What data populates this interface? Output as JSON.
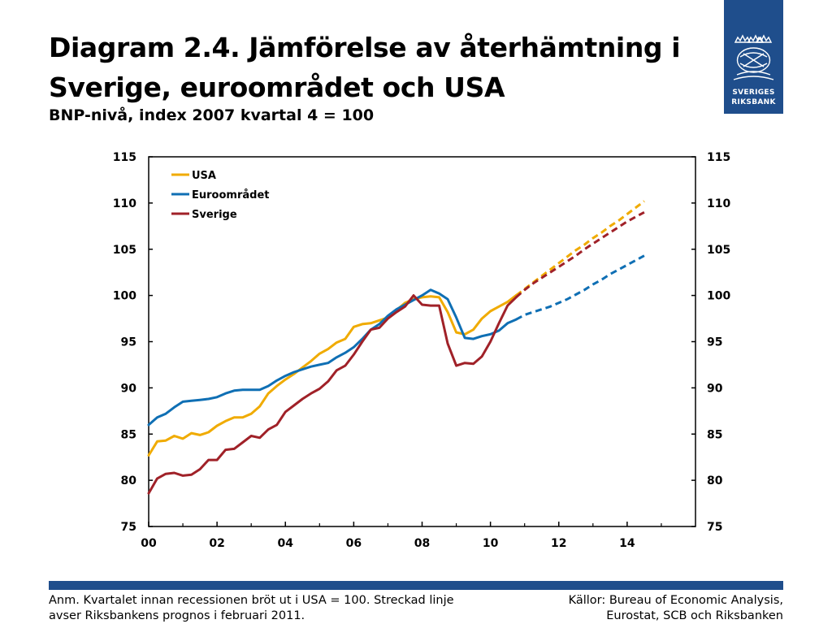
{
  "page": {
    "title_line1": "Diagram 2.4. Jämförelse av återhämtning i",
    "title_line2": "Sverige, euroområdet och USA",
    "subtitle": "BNP-nivå, index 2007 kvartal 4 = 100",
    "logo": {
      "line1": "SVERIGES",
      "line2": "RIKSBANK",
      "icon": "riksbank-crest-icon",
      "color": "#1f4e8c"
    },
    "note_line1": "Anm. Kvartalet innan recessionen bröt ut i USA = 100. Streckad linje",
    "note_line2": "avser Riksbankens prognos i februari 2011.",
    "sources_line1": "Källor: Bureau of Economic Analysis,",
    "sources_line2": "Eurostat, SCB och Riksbanken"
  },
  "chart_data": {
    "type": "line",
    "title": "",
    "xlabel": "",
    "ylabel": "",
    "x_ticks": [
      "00",
      "02",
      "04",
      "06",
      "08",
      "10",
      "12",
      "14"
    ],
    "x_tick_years": [
      2000,
      2002,
      2004,
      2006,
      2008,
      2010,
      2012,
      2014
    ],
    "xlim": [
      2000,
      2016
    ],
    "ylim": [
      75,
      115
    ],
    "y_ticks": [
      75,
      80,
      85,
      90,
      95,
      100,
      105,
      110,
      115
    ],
    "y_axis_both_sides": true,
    "grid": false,
    "legend_position": "top-left",
    "series": [
      {
        "name": "USA",
        "color": "#f0ab00",
        "actual": [
          [
            2000.0,
            82.7
          ],
          [
            2000.25,
            84.2
          ],
          [
            2000.5,
            84.3
          ],
          [
            2000.75,
            84.8
          ],
          [
            2001.0,
            84.5
          ],
          [
            2001.25,
            85.1
          ],
          [
            2001.5,
            84.9
          ],
          [
            2001.75,
            85.2
          ],
          [
            2002.0,
            85.9
          ],
          [
            2002.25,
            86.4
          ],
          [
            2002.5,
            86.8
          ],
          [
            2002.75,
            86.8
          ],
          [
            2003.0,
            87.2
          ],
          [
            2003.25,
            88.0
          ],
          [
            2003.5,
            89.4
          ],
          [
            2003.75,
            90.2
          ],
          [
            2004.0,
            90.9
          ],
          [
            2004.25,
            91.5
          ],
          [
            2004.5,
            92.2
          ],
          [
            2004.75,
            92.9
          ],
          [
            2005.0,
            93.7
          ],
          [
            2005.25,
            94.2
          ],
          [
            2005.5,
            94.9
          ],
          [
            2005.75,
            95.3
          ],
          [
            2006.0,
            96.6
          ],
          [
            2006.25,
            96.9
          ],
          [
            2006.5,
            97.0
          ],
          [
            2006.75,
            97.3
          ],
          [
            2007.0,
            97.6
          ],
          [
            2007.25,
            98.4
          ],
          [
            2007.5,
            99.2
          ],
          [
            2007.75,
            99.6
          ],
          [
            2008.0,
            99.8
          ],
          [
            2008.25,
            99.9
          ],
          [
            2008.5,
            99.8
          ],
          [
            2008.75,
            98.2
          ],
          [
            2009.0,
            96.0
          ],
          [
            2009.25,
            95.8
          ],
          [
            2009.5,
            96.3
          ],
          [
            2009.75,
            97.5
          ],
          [
            2010.0,
            98.3
          ],
          [
            2010.25,
            98.8
          ],
          [
            2010.5,
            99.3
          ],
          [
            2010.75,
            100.0
          ]
        ],
        "forecast": [
          [
            2010.75,
            100.0
          ],
          [
            2011.0,
            100.7
          ],
          [
            2011.25,
            101.4
          ],
          [
            2011.5,
            102.1
          ],
          [
            2011.75,
            102.8
          ],
          [
            2012.0,
            103.5
          ],
          [
            2012.25,
            104.2
          ],
          [
            2012.5,
            104.9
          ],
          [
            2012.75,
            105.5
          ],
          [
            2013.0,
            106.2
          ],
          [
            2013.25,
            106.8
          ],
          [
            2013.5,
            107.5
          ],
          [
            2013.75,
            108.1
          ],
          [
            2014.0,
            108.8
          ],
          [
            2014.25,
            109.5
          ],
          [
            2014.5,
            110.2
          ]
        ]
      },
      {
        "name": "Euroområdet",
        "color": "#0f6fb4",
        "actual": [
          [
            2000.0,
            86.0
          ],
          [
            2000.25,
            86.8
          ],
          [
            2000.5,
            87.2
          ],
          [
            2000.75,
            87.9
          ],
          [
            2001.0,
            88.5
          ],
          [
            2001.25,
            88.6
          ],
          [
            2001.5,
            88.7
          ],
          [
            2001.75,
            88.8
          ],
          [
            2002.0,
            89.0
          ],
          [
            2002.25,
            89.4
          ],
          [
            2002.5,
            89.7
          ],
          [
            2002.75,
            89.8
          ],
          [
            2003.0,
            89.8
          ],
          [
            2003.25,
            89.8
          ],
          [
            2003.5,
            90.2
          ],
          [
            2003.75,
            90.8
          ],
          [
            2004.0,
            91.3
          ],
          [
            2004.25,
            91.7
          ],
          [
            2004.5,
            92.0
          ],
          [
            2004.75,
            92.3
          ],
          [
            2005.0,
            92.5
          ],
          [
            2005.25,
            92.7
          ],
          [
            2005.5,
            93.3
          ],
          [
            2005.75,
            93.8
          ],
          [
            2006.0,
            94.4
          ],
          [
            2006.25,
            95.3
          ],
          [
            2006.5,
            96.3
          ],
          [
            2006.75,
            96.9
          ],
          [
            2007.0,
            97.8
          ],
          [
            2007.25,
            98.5
          ],
          [
            2007.5,
            99.0
          ],
          [
            2007.75,
            99.5
          ],
          [
            2008.0,
            100.0
          ],
          [
            2008.25,
            100.6
          ],
          [
            2008.5,
            100.2
          ],
          [
            2008.75,
            99.6
          ],
          [
            2009.0,
            97.6
          ],
          [
            2009.25,
            95.4
          ],
          [
            2009.5,
            95.3
          ],
          [
            2009.75,
            95.6
          ],
          [
            2010.0,
            95.8
          ],
          [
            2010.25,
            96.2
          ],
          [
            2010.5,
            97.0
          ],
          [
            2010.75,
            97.4
          ]
        ],
        "forecast": [
          [
            2010.75,
            97.4
          ],
          [
            2011.0,
            97.9
          ],
          [
            2011.25,
            98.2
          ],
          [
            2011.5,
            98.5
          ],
          [
            2011.75,
            98.8
          ],
          [
            2012.0,
            99.2
          ],
          [
            2012.25,
            99.6
          ],
          [
            2012.5,
            100.1
          ],
          [
            2012.75,
            100.6
          ],
          [
            2013.0,
            101.2
          ],
          [
            2013.25,
            101.7
          ],
          [
            2013.5,
            102.3
          ],
          [
            2013.75,
            102.8
          ],
          [
            2014.0,
            103.3
          ],
          [
            2014.25,
            103.8
          ],
          [
            2014.5,
            104.3
          ]
        ]
      },
      {
        "name": "Sverige",
        "color": "#a02128",
        "actual": [
          [
            2000.0,
            78.6
          ],
          [
            2000.25,
            80.2
          ],
          [
            2000.5,
            80.7
          ],
          [
            2000.75,
            80.8
          ],
          [
            2001.0,
            80.5
          ],
          [
            2001.25,
            80.6
          ],
          [
            2001.5,
            81.2
          ],
          [
            2001.75,
            82.2
          ],
          [
            2002.0,
            82.2
          ],
          [
            2002.25,
            83.3
          ],
          [
            2002.5,
            83.4
          ],
          [
            2002.75,
            84.1
          ],
          [
            2003.0,
            84.8
          ],
          [
            2003.25,
            84.6
          ],
          [
            2003.5,
            85.5
          ],
          [
            2003.75,
            86.0
          ],
          [
            2004.0,
            87.4
          ],
          [
            2004.25,
            88.1
          ],
          [
            2004.5,
            88.8
          ],
          [
            2004.75,
            89.4
          ],
          [
            2005.0,
            89.9
          ],
          [
            2005.25,
            90.7
          ],
          [
            2005.5,
            91.9
          ],
          [
            2005.75,
            92.4
          ],
          [
            2006.0,
            93.6
          ],
          [
            2006.25,
            95.0
          ],
          [
            2006.5,
            96.3
          ],
          [
            2006.75,
            96.5
          ],
          [
            2007.0,
            97.5
          ],
          [
            2007.25,
            98.2
          ],
          [
            2007.5,
            98.8
          ],
          [
            2007.75,
            100.0
          ],
          [
            2008.0,
            99.0
          ],
          [
            2008.25,
            98.9
          ],
          [
            2008.5,
            98.9
          ],
          [
            2008.75,
            94.8
          ],
          [
            2009.0,
            92.4
          ],
          [
            2009.25,
            92.7
          ],
          [
            2009.5,
            92.6
          ],
          [
            2009.75,
            93.4
          ],
          [
            2010.0,
            95.0
          ],
          [
            2010.25,
            97.0
          ],
          [
            2010.5,
            98.9
          ],
          [
            2010.75,
            99.8
          ]
        ],
        "forecast": [
          [
            2010.75,
            99.8
          ],
          [
            2011.0,
            100.6
          ],
          [
            2011.25,
            101.3
          ],
          [
            2011.5,
            101.9
          ],
          [
            2011.75,
            102.5
          ],
          [
            2012.0,
            103.1
          ],
          [
            2012.25,
            103.7
          ],
          [
            2012.5,
            104.3
          ],
          [
            2012.75,
            105.0
          ],
          [
            2013.0,
            105.6
          ],
          [
            2013.25,
            106.2
          ],
          [
            2013.5,
            106.8
          ],
          [
            2013.75,
            107.4
          ],
          [
            2014.0,
            108.0
          ],
          [
            2014.25,
            108.5
          ],
          [
            2014.5,
            109.0
          ]
        ]
      }
    ]
  }
}
